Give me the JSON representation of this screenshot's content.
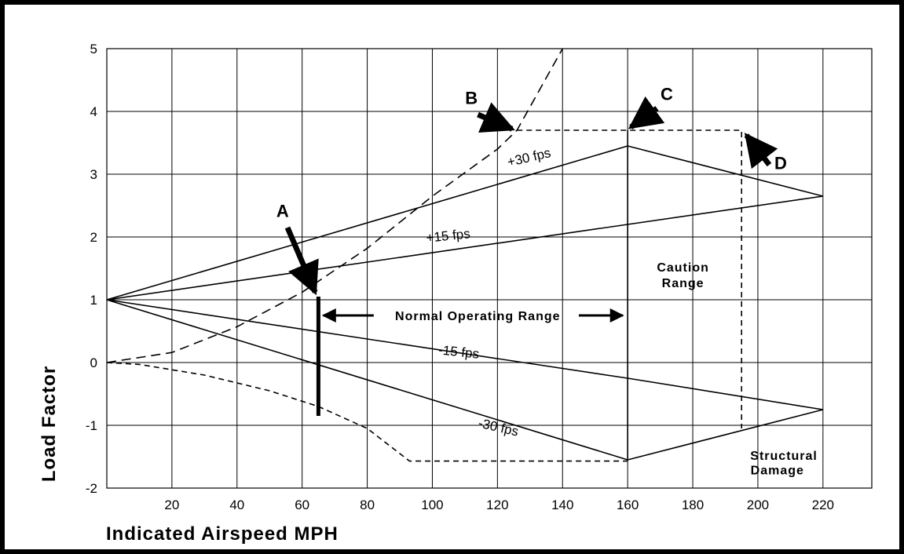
{
  "chart_data": {
    "type": "line",
    "title": "",
    "xlabel": "Indicated Airspeed MPH",
    "ylabel": "Load Factor",
    "xlim": [
      0,
      235
    ],
    "ylim": [
      -2,
      5
    ],
    "grid": true,
    "x_ticks": [
      20,
      40,
      60,
      80,
      100,
      120,
      140,
      160,
      180,
      200,
      220
    ],
    "y_ticks": [
      -2,
      -1,
      0,
      1,
      2,
      3,
      4,
      5
    ],
    "series": [
      {
        "name": "+30 fps",
        "style": "solid",
        "x": [
          0,
          160,
          220
        ],
        "y": [
          1,
          3.45,
          2.65
        ]
      },
      {
        "name": "+15 fps",
        "style": "solid",
        "x": [
          0,
          160,
          220
        ],
        "y": [
          1,
          2.2,
          2.65
        ]
      },
      {
        "name": "-15 fps",
        "style": "solid",
        "x": [
          0,
          160,
          220
        ],
        "y": [
          1,
          -0.25,
          -0.75
        ]
      },
      {
        "name": "-30 fps",
        "style": "solid",
        "x": [
          0,
          160,
          220
        ],
        "y": [
          1,
          -1.55,
          -0.75
        ]
      },
      {
        "style": "dashed",
        "x": [
          0,
          20,
          40,
          60,
          80,
          100,
          120,
          126,
          140
        ],
        "y": [
          0,
          0.16,
          0.57,
          1.12,
          1.82,
          2.65,
          3.4,
          3.7,
          5
        ]
      },
      {
        "style": "dashed-short",
        "x": [
          126,
          195,
          195
        ],
        "y": [
          3.7,
          3.7,
          -1.05
        ]
      },
      {
        "style": "dashed-short",
        "x": [
          0,
          10,
          30,
          50,
          65,
          80,
          93,
          160
        ],
        "y": [
          0,
          -0.03,
          -0.2,
          -0.45,
          -0.7,
          -1.05,
          -1.57,
          -1.57
        ]
      },
      {
        "style": "bold",
        "x": [
          65,
          65
        ],
        "y": [
          1.05,
          -0.85
        ]
      },
      {
        "style": "solid",
        "x": [
          160,
          160
        ],
        "y": [
          3.7,
          -1.55
        ]
      }
    ],
    "labels": [
      {
        "text": "+30 fps",
        "x": 130,
        "y": 3.2,
        "angle": -13
      },
      {
        "text": "+15 fps",
        "x": 105,
        "y": 1.95,
        "angle": -6
      },
      {
        "text": "-15 fps",
        "x": 108,
        "y": 0.1,
        "angle": 6
      },
      {
        "text": "-30 fps",
        "x": 120,
        "y": -1.1,
        "angle": 13
      }
    ],
    "regions": {
      "normal_operating_range": "Normal Operating Range",
      "caution_line1": "Caution",
      "caution_line2": "Range",
      "structural_line1": "Structural",
      "structural_line2": "Damage"
    },
    "points": [
      {
        "label": "A",
        "x": 65,
        "y": 1.05
      },
      {
        "label": "B",
        "x": 126,
        "y": 3.7
      },
      {
        "label": "C",
        "x": 160,
        "y": 3.7
      },
      {
        "label": "D",
        "x": 195,
        "y": 3.7
      }
    ]
  }
}
